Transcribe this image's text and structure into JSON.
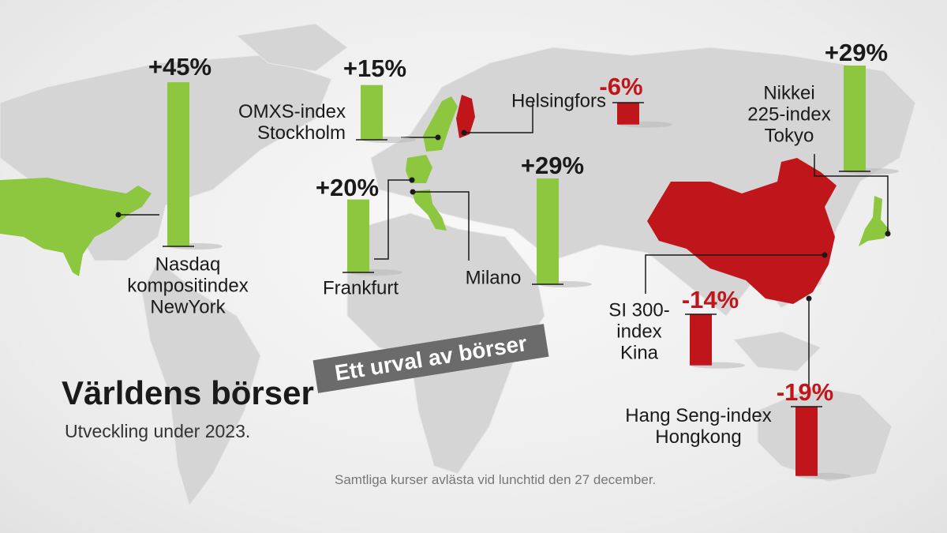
{
  "chart_data": {
    "type": "bar",
    "title": "Världens börser",
    "subtitle": "Utveckling under 2023.",
    "annotation": "Ett urval av börser",
    "note": "Samtliga kurser avlästa vid lunchtid den 27 december.",
    "categories": [
      "Nasdaq\nkompositindex\nNewYork",
      "OMXS-index\nStockholm",
      "Frankfurt",
      "Milano",
      "Helsingfors",
      "Nikkei\n225-index\nTokyo",
      "SI 300-\nindex\nKina",
      "Hang Seng-index\nHongkong"
    ],
    "values": [
      45,
      15,
      20,
      29,
      -6,
      29,
      -14,
      -19
    ],
    "value_labels": [
      "+45%",
      "+15%",
      "+20%",
      "+29%",
      "-6%",
      "+29%",
      "-14%",
      "-19%"
    ],
    "colors": [
      "#8dc63f",
      "#8dc63f",
      "#8dc63f",
      "#8dc63f",
      "#c0161b",
      "#8dc63f",
      "#c0161b",
      "#c0161b"
    ]
  }
}
